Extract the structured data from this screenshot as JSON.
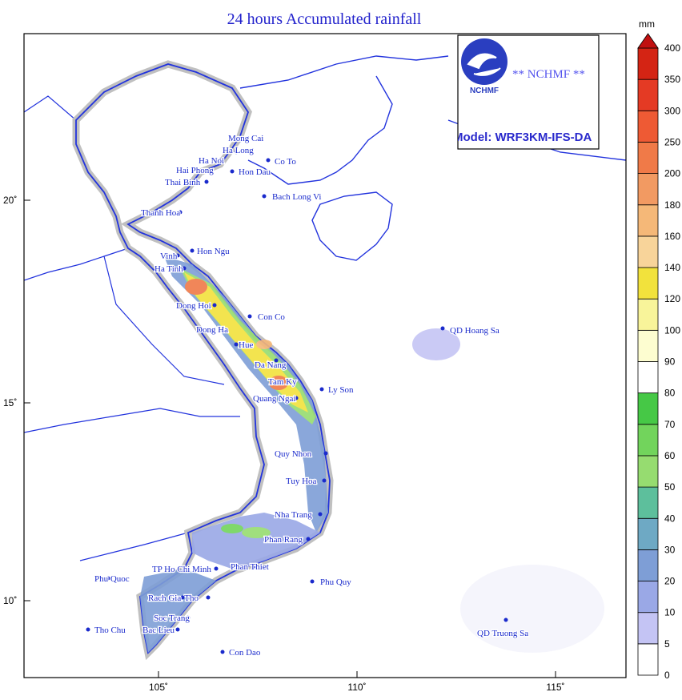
{
  "title": "24 hours Accumulated rainfall",
  "unit": "mm",
  "logo": {
    "caption": "NCHMF",
    "banner": "** NCHMF **",
    "model": "Model: WRF3KM-IFS-DA"
  },
  "lon_ticks": [
    "105˚",
    "110˚",
    "115˚"
  ],
  "lat_ticks": [
    "20˚",
    "15˚",
    "10˚"
  ],
  "legend": {
    "levels": [
      0,
      5,
      10,
      20,
      30,
      40,
      50,
      60,
      70,
      80,
      90,
      100,
      120,
      140,
      160,
      180,
      200,
      250,
      300,
      350,
      400
    ],
    "colors": [
      "#ffffff",
      "#c4c4f4",
      "#9aa8e6",
      "#7e9ed6",
      "#6ea9c4",
      "#5dbf9c",
      "#96dc70",
      "#72d45c",
      "#46c846",
      "#ffffff",
      "#fdfdd0",
      "#f8f49a",
      "#f2e23c",
      "#f8d49a",
      "#f5b878",
      "#f29a62",
      "#f07a48",
      "#ee5a34",
      "#e43a24",
      "#d42414",
      "#c01010"
    ]
  },
  "stations": [
    "Mong Cai",
    "Ha Long",
    "Ha Noi",
    "Co To",
    "Hai Phong",
    "Hon Dau",
    "Thai Binh",
    "Bach Long Vi",
    "Thanh Hoa",
    "Hon Ngu",
    "Vinh",
    "Ha Tinh",
    "Dong Hoi",
    "Con Co",
    "Dong Ha",
    "Hue",
    "Da Nang",
    "QD Hoang Sa",
    "Tam Ky",
    "Ly Son",
    "Quang Ngai",
    "Quy Nhon",
    "Tuy Hoa",
    "Nha Trang",
    "Phan Rang",
    "Phan Thiet",
    "Phu Quy",
    "Phu Quoc",
    "TP Ho Chi Minh",
    "Can Tho",
    "Rach Gia",
    "Soc Trang",
    "Bac Lieu",
    "Tho Chu",
    "Con Dao",
    "QD Truong Sa"
  ]
}
